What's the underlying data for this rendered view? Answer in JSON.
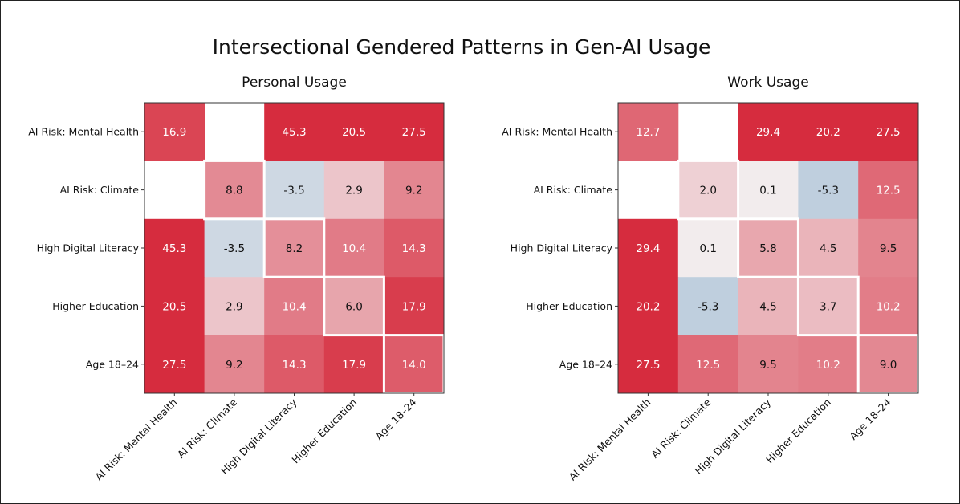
{
  "chart_data": [
    {
      "type": "heatmap",
      "title": "Personal Usage",
      "x_labels": [
        "AI Risk: Mental Health",
        "AI Risk: Climate",
        "High Digital Literacy",
        "Higher Education",
        "Age 18–24"
      ],
      "y_labels": [
        "AI Risk: Mental Health",
        "AI Risk: Climate",
        "High Digital Literacy",
        "Higher Education",
        "Age 18–24"
      ],
      "values": [
        [
          16.9,
          null,
          45.3,
          20.5,
          27.5
        ],
        [
          null,
          8.8,
          -3.5,
          2.9,
          9.2
        ],
        [
          45.3,
          -3.5,
          8.2,
          10.4,
          14.3
        ],
        [
          20.5,
          2.9,
          10.4,
          6.0,
          17.9
        ],
        [
          27.5,
          9.2,
          14.3,
          17.9,
          14.0
        ]
      ],
      "colormap": {
        "negative": "#5f93bd",
        "zero": "#f2eff0",
        "positive": "#d62c3e"
      },
      "diagonal_highlight": true
    },
    {
      "type": "heatmap",
      "title": "Work Usage",
      "x_labels": [
        "AI Risk: Mental Health",
        "AI Risk: Climate",
        "High Digital Literacy",
        "Higher Education",
        "Age 18–24"
      ],
      "y_labels": [
        "AI Risk: Mental Health",
        "AI Risk: Climate",
        "High Digital Literacy",
        "Higher Education",
        "Age 18–24"
      ],
      "values": [
        [
          12.7,
          null,
          29.4,
          20.2,
          27.5
        ],
        [
          null,
          2.0,
          0.1,
          -5.3,
          12.5
        ],
        [
          29.4,
          0.1,
          5.8,
          4.5,
          9.5
        ],
        [
          20.2,
          -5.3,
          4.5,
          3.7,
          10.2
        ],
        [
          27.5,
          12.5,
          9.5,
          10.2,
          9.0
        ]
      ],
      "colormap": {
        "negative": "#5f93bd",
        "zero": "#f2eff0",
        "positive": "#d62c3e"
      },
      "diagonal_highlight": true
    }
  ],
  "figure": {
    "title": "Intersectional Gendered Patterns in Gen-AI Usage"
  }
}
